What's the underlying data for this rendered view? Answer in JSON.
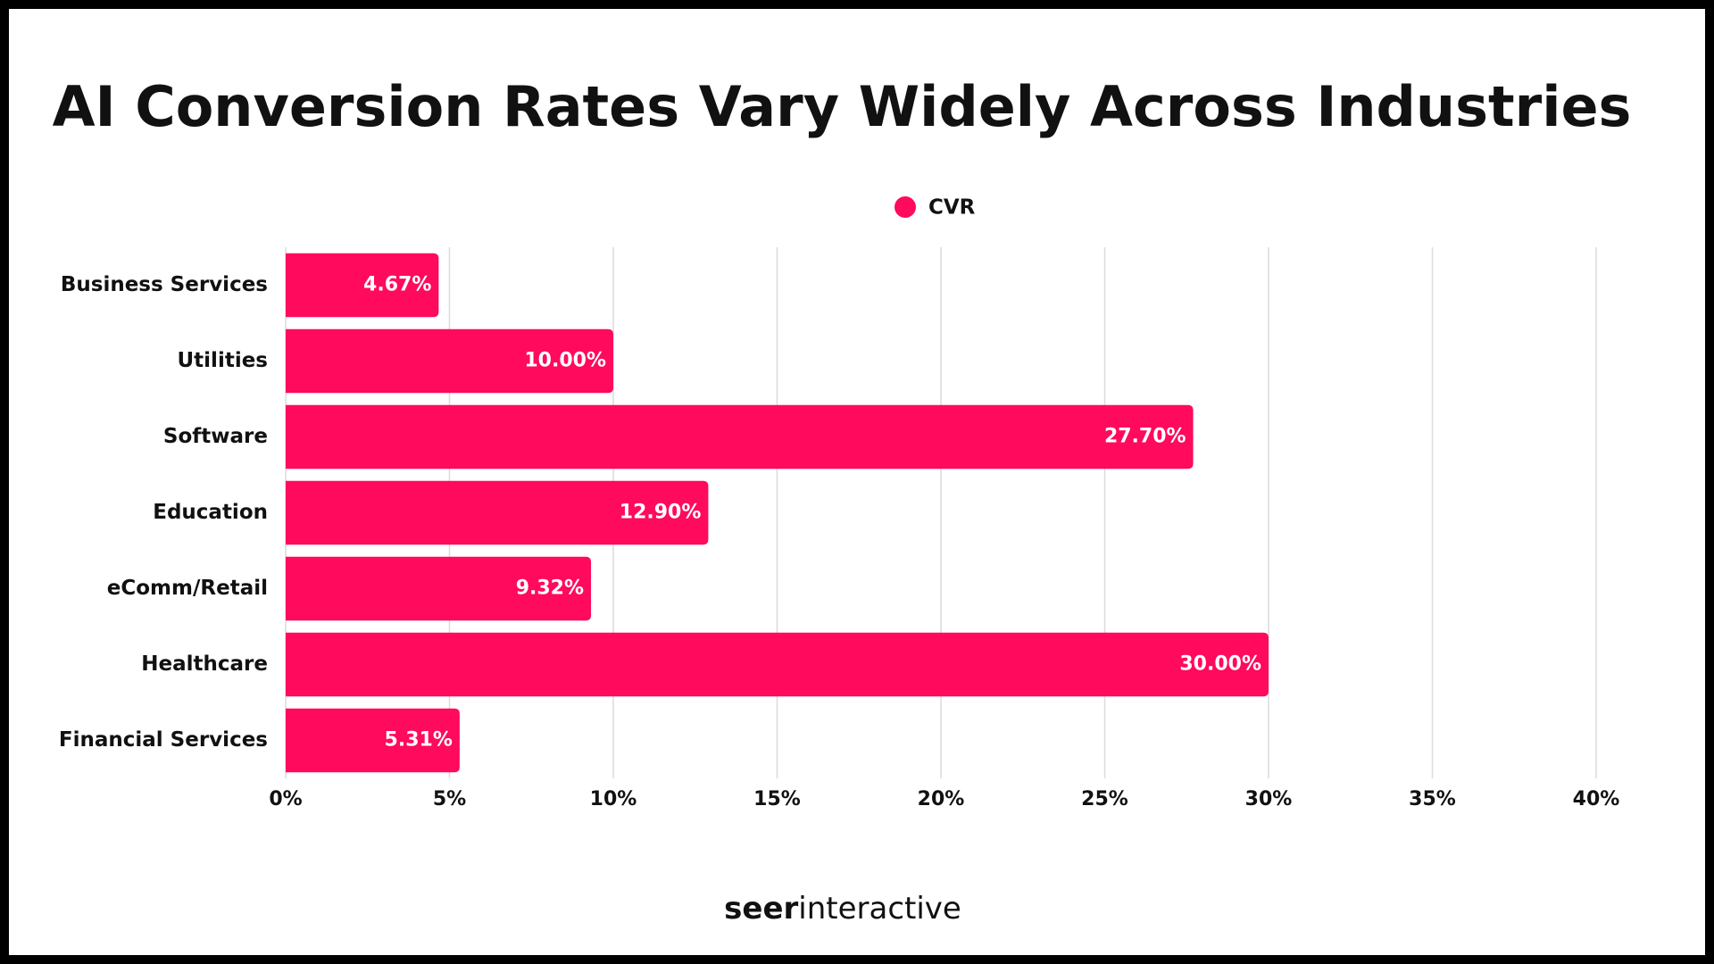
{
  "chart_data": {
    "type": "hbar",
    "title": "AI Conversion Rates Vary Widely Across Industries",
    "categories": [
      "Business Services",
      "Utilities",
      "Software",
      "Education",
      "eComm/Retail",
      "Healthcare",
      "Financial Services"
    ],
    "series": [
      {
        "name": "CVR",
        "color": "#ff0a5c",
        "values": [
          4.67,
          10.0,
          27.7,
          12.9,
          9.32,
          30.0,
          5.31
        ],
        "value_labels": [
          "4.67%",
          "10.00%",
          "27.70%",
          "12.90%",
          "9.32%",
          "30.00%",
          "5.31%"
        ]
      }
    ],
    "xlim": [
      0,
      40
    ],
    "xticks": [
      {
        "value": 0,
        "label": "0%"
      },
      {
        "value": 5,
        "label": "5%"
      },
      {
        "value": 10,
        "label": "10%"
      },
      {
        "value": 15,
        "label": "15%"
      },
      {
        "value": 20,
        "label": "20%"
      },
      {
        "value": 25,
        "label": "25%"
      },
      {
        "value": 30,
        "label": "30%"
      },
      {
        "value": 35,
        "label": "35%"
      },
      {
        "value": 40,
        "label": "40%"
      }
    ],
    "grid": true,
    "legend": "top"
  },
  "footer": {
    "bold": "seer",
    "regular": "interactive"
  }
}
